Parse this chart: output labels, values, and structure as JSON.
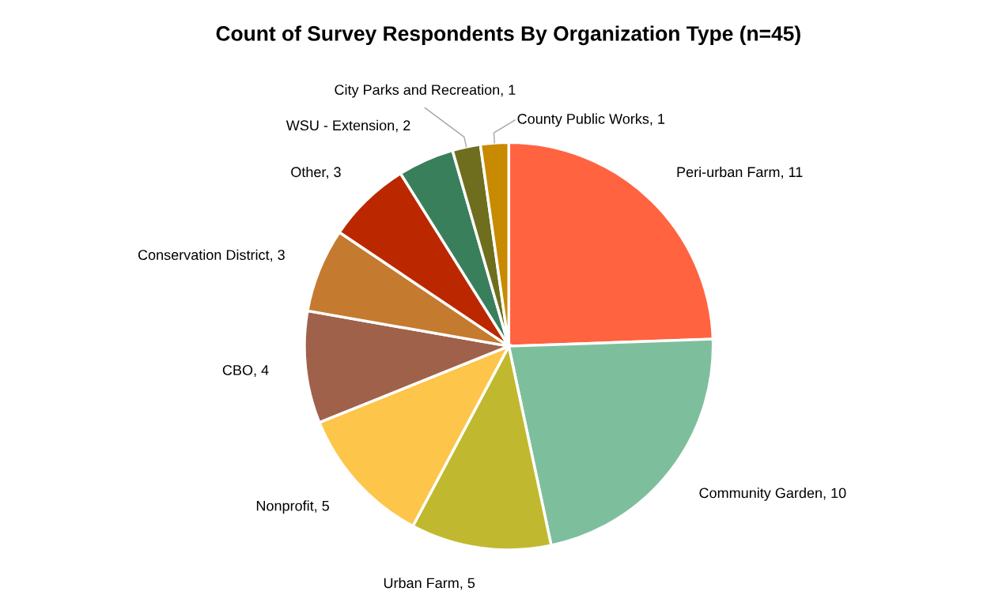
{
  "chart_data": {
    "type": "pie",
    "title": "Count of Survey Respondents By Organization Type (n=45)",
    "categories": [
      "Peri-urban Farm, 11",
      "Community Garden, 10",
      "Urban Farm, 5",
      "Nonprofit, 5",
      "CBO, 4",
      "Conservation District, 3",
      "Other, 3",
      "WSU - Extension, 2",
      "City Parks and Recreation, 1",
      "County Public Works, 1"
    ],
    "values": [
      11,
      10,
      5,
      5,
      4,
      3,
      3,
      2,
      1,
      1
    ],
    "colors": [
      "#ff6340",
      "#7dbf9c",
      "#c0b92f",
      "#fdc54a",
      "#a0614a",
      "#c47b2f",
      "#bb2800",
      "#3a7f5c",
      "#6e6e1e",
      "#c88a00"
    ]
  }
}
